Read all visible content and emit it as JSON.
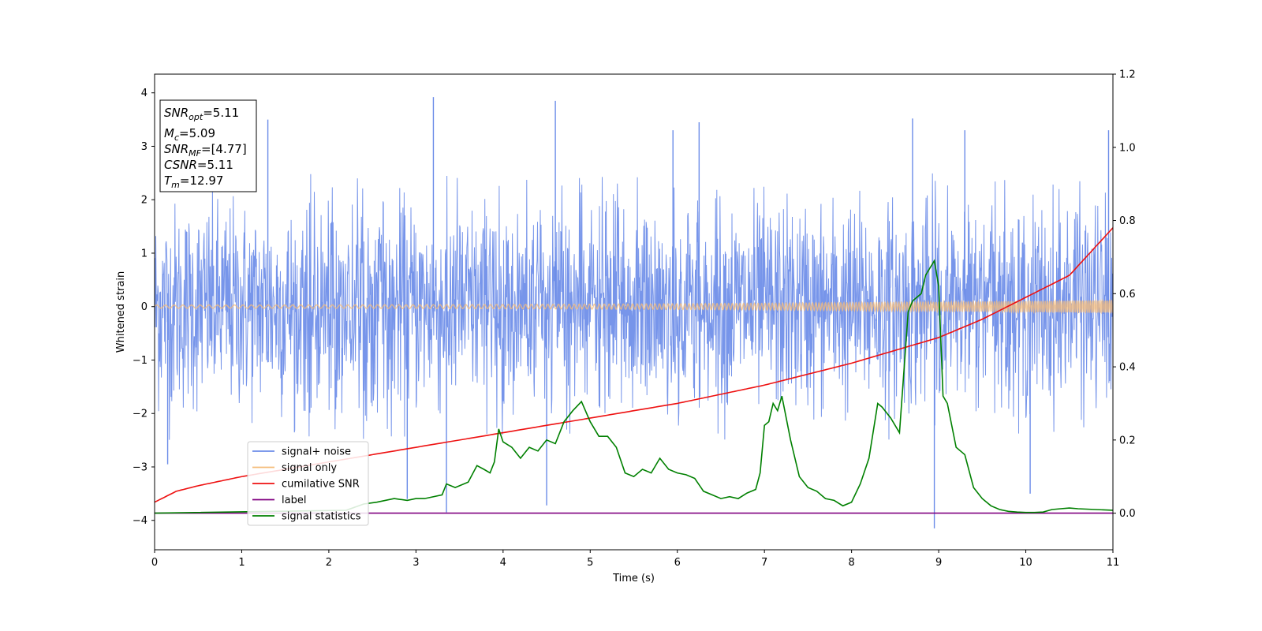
{
  "chart_data": {
    "type": "line",
    "xlabel": "Time (s)",
    "ylabel": "Whitened strain",
    "xlim": [
      0,
      11
    ],
    "ylim": [
      -4.55,
      4.35
    ],
    "y2lim": [
      -0.1,
      1.2
    ],
    "x_ticks": [
      0,
      1,
      2,
      3,
      4,
      5,
      6,
      7,
      8,
      9,
      10,
      11
    ],
    "y_ticks": [
      -4,
      -3,
      -2,
      -1,
      0,
      1,
      2,
      3,
      4
    ],
    "y2_ticks": [
      0.0,
      0.2,
      0.4,
      0.6,
      0.8,
      1.0,
      1.2
    ],
    "y_tick_labels": [
      "−4",
      "−3",
      "−2",
      "−1",
      "0",
      "1",
      "2",
      "3",
      "4"
    ],
    "y2_tick_labels": [
      "0.0",
      "0.2",
      "0.4",
      "0.6",
      "0.8",
      "1.0",
      "1.2"
    ],
    "x_tick_labels": [
      "0",
      "1",
      "2",
      "3",
      "4",
      "5",
      "6",
      "7",
      "8",
      "9",
      "10",
      "11"
    ],
    "legend_position": "lower-left",
    "info_box": {
      "snr_opt": "5.11",
      "mc": "5.09",
      "snr_mf": "[4.77]",
      "csnr": "5.11",
      "tm": "12.97"
    },
    "series": [
      {
        "name": "signal+ noise",
        "color": "#6b8ce8",
        "axis": "left",
        "kind": "noise",
        "typical_range": [
          -2.2,
          2.2
        ],
        "extremes": [
          {
            "x": 3.2,
            "y": 3.92
          },
          {
            "x": 4.6,
            "y": 3.85
          },
          {
            "x": 8.95,
            "y": -4.15
          },
          {
            "x": 1.3,
            "y": 3.5
          },
          {
            "x": 8.7,
            "y": 3.52
          },
          {
            "x": 10.95,
            "y": 3.3
          },
          {
            "x": 3.35,
            "y": -3.85
          },
          {
            "x": 4.5,
            "y": -3.72
          },
          {
            "x": 2.9,
            "y": -3.6
          },
          {
            "x": 5.95,
            "y": 3.3
          },
          {
            "x": 6.25,
            "y": 3.45
          },
          {
            "x": 9.3,
            "y": 3.3
          },
          {
            "x": 0.15,
            "y": -2.95
          },
          {
            "x": 10.05,
            "y": -3.5
          }
        ]
      },
      {
        "name": "signal only",
        "color": "#f5bc7a",
        "axis": "left",
        "kind": "chirp",
        "amplitude_start": 0.03,
        "amplitude_end": 0.12
      },
      {
        "name": "cumilative SNR",
        "color": "#ee1111",
        "axis": "right",
        "x": [
          0,
          0.25,
          0.5,
          1,
          1.5,
          2,
          2.5,
          3,
          3.5,
          4,
          4.5,
          5,
          5.5,
          6,
          6.5,
          7,
          7.5,
          8,
          8.5,
          9,
          9.5,
          10,
          10.5,
          11
        ],
        "values": [
          0.03,
          0.06,
          0.075,
          0.1,
          0.12,
          0.14,
          0.16,
          0.18,
          0.2,
          0.22,
          0.24,
          0.26,
          0.28,
          0.3,
          0.325,
          0.35,
          0.38,
          0.41,
          0.445,
          0.48,
          0.53,
          0.59,
          0.65,
          0.78
        ]
      },
      {
        "name": "label",
        "color": "#800080",
        "axis": "right",
        "x": [
          0,
          11
        ],
        "values": [
          0,
          0
        ]
      },
      {
        "name": "signal statistics",
        "color": "#008000",
        "axis": "right",
        "x": [
          0,
          2.2,
          2.4,
          2.55,
          2.75,
          2.9,
          3.0,
          3.1,
          3.3,
          3.35,
          3.45,
          3.6,
          3.7,
          3.78,
          3.85,
          3.9,
          3.95,
          4.0,
          4.1,
          4.2,
          4.3,
          4.4,
          4.5,
          4.6,
          4.7,
          4.8,
          4.9,
          5.0,
          5.1,
          5.2,
          5.3,
          5.4,
          5.5,
          5.6,
          5.7,
          5.8,
          5.9,
          6.0,
          6.1,
          6.2,
          6.3,
          6.4,
          6.5,
          6.6,
          6.7,
          6.8,
          6.9,
          6.95,
          7.0,
          7.05,
          7.1,
          7.15,
          7.2,
          7.3,
          7.4,
          7.5,
          7.6,
          7.7,
          7.8,
          7.9,
          8.0,
          8.1,
          8.2,
          8.3,
          8.35,
          8.45,
          8.55,
          8.65,
          8.7,
          8.75,
          8.8,
          8.85,
          8.9,
          8.95,
          9.0,
          9.05,
          9.1,
          9.2,
          9.3,
          9.4,
          9.5,
          9.6,
          9.7,
          9.8,
          9.9,
          10.0,
          10.1,
          10.2,
          10.3,
          10.4,
          10.5,
          10.6,
          10.8,
          11.0
        ],
        "values": [
          0.0,
          0.008,
          0.025,
          0.03,
          0.04,
          0.035,
          0.04,
          0.04,
          0.05,
          0.08,
          0.07,
          0.085,
          0.13,
          0.12,
          0.11,
          0.14,
          0.23,
          0.195,
          0.18,
          0.15,
          0.18,
          0.17,
          0.2,
          0.19,
          0.25,
          0.28,
          0.305,
          0.25,
          0.21,
          0.21,
          0.18,
          0.11,
          0.1,
          0.12,
          0.11,
          0.15,
          0.12,
          0.11,
          0.105,
          0.095,
          0.06,
          0.05,
          0.04,
          0.045,
          0.04,
          0.055,
          0.065,
          0.11,
          0.24,
          0.25,
          0.3,
          0.28,
          0.32,
          0.2,
          0.1,
          0.07,
          0.06,
          0.04,
          0.035,
          0.02,
          0.03,
          0.08,
          0.15,
          0.3,
          0.29,
          0.26,
          0.22,
          0.55,
          0.58,
          0.59,
          0.6,
          0.65,
          0.67,
          0.69,
          0.62,
          0.32,
          0.3,
          0.18,
          0.16,
          0.07,
          0.04,
          0.02,
          0.01,
          0.005,
          0.003,
          0.002,
          0.002,
          0.003,
          0.01,
          0.012,
          0.014,
          0.012,
          0.01,
          0.008
        ]
      }
    ]
  }
}
